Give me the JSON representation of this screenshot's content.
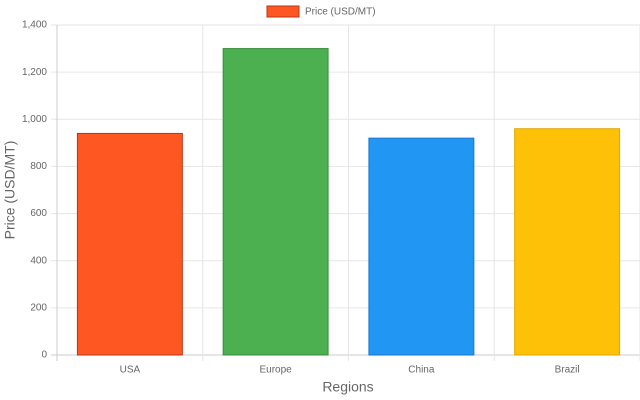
{
  "chart_data": {
    "type": "bar",
    "xlabel": "Regions",
    "ylabel": "Price (USD/MT)",
    "categories": [
      "USA",
      "Europe",
      "China",
      "Brazil"
    ],
    "series": [
      {
        "name": "Price (USD/MT)",
        "colors": [
          "#ff5722",
          "#4caf50",
          "#2196f3",
          "#ffc107"
        ],
        "border_colors": [
          "#b5371a",
          "#388e3c",
          "#1976d2",
          "#e0a800"
        ],
        "values": [
          940,
          1300,
          920,
          960
        ]
      }
    ],
    "ylim": [
      0,
      1400
    ],
    "yticks": [
      0,
      200,
      400,
      600,
      800,
      {
        "value": 1000,
        "label": "1,000"
      },
      {
        "value": 1200,
        "label": "1,200"
      },
      {
        "value": 1400,
        "label": "1,400"
      }
    ],
    "grid": true,
    "legend": "top"
  }
}
